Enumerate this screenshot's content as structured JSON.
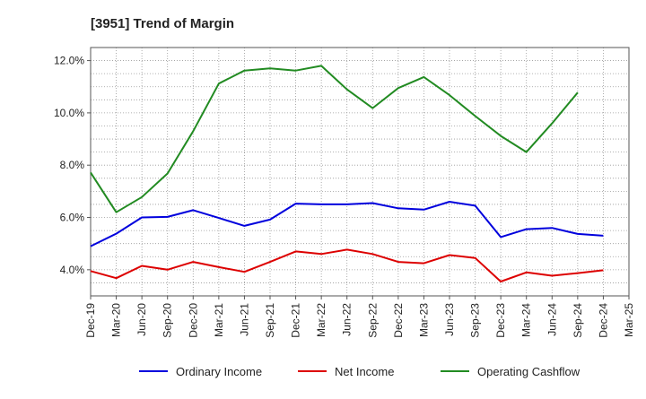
{
  "chart_data": {
    "type": "line",
    "title": "[3951]  Trend of Margin",
    "xlabel": "",
    "ylabel": "",
    "x": [
      "Dec-19",
      "Mar-20",
      "Jun-20",
      "Sep-20",
      "Dec-20",
      "Mar-21",
      "Jun-21",
      "Sep-21",
      "Dec-21",
      "Mar-22",
      "Jun-22",
      "Sep-22",
      "Dec-22",
      "Mar-23",
      "Jun-23",
      "Sep-23",
      "Dec-23",
      "Mar-24",
      "Jun-24",
      "Sep-24",
      "Dec-24",
      "Mar-25"
    ],
    "ylim": [
      3.0,
      12.5
    ],
    "yticks": [
      4.0,
      6.0,
      8.0,
      10.0,
      12.0
    ],
    "ytick_labels": [
      "4.0%",
      "6.0%",
      "8.0%",
      "10.0%",
      "12.0%"
    ],
    "grid": true,
    "legend_position": "bottom",
    "series": [
      {
        "name": "Ordinary Income",
        "color": "#0000dd",
        "values": [
          4.9,
          5.38,
          6.0,
          6.02,
          6.28,
          5.98,
          5.68,
          5.92,
          6.53,
          6.5,
          6.5,
          6.55,
          6.35,
          6.3,
          6.6,
          6.45,
          5.25,
          5.55,
          5.6,
          5.37,
          5.3,
          null
        ]
      },
      {
        "name": "Net Income",
        "color": "#dd0000",
        "values": [
          3.95,
          3.68,
          4.15,
          4.0,
          4.3,
          4.1,
          3.92,
          4.3,
          4.7,
          4.6,
          4.77,
          4.6,
          4.3,
          4.25,
          4.56,
          4.45,
          3.55,
          3.9,
          3.77,
          3.87,
          3.98,
          null
        ]
      },
      {
        "name": "Operating Cashflow",
        "color": "#228b22",
        "values": [
          7.72,
          6.2,
          6.78,
          7.68,
          9.3,
          11.12,
          11.62,
          11.7,
          11.62,
          11.8,
          10.9,
          10.18,
          10.95,
          11.37,
          10.68,
          9.88,
          9.12,
          8.5,
          9.6,
          10.78,
          null,
          null
        ]
      }
    ]
  }
}
